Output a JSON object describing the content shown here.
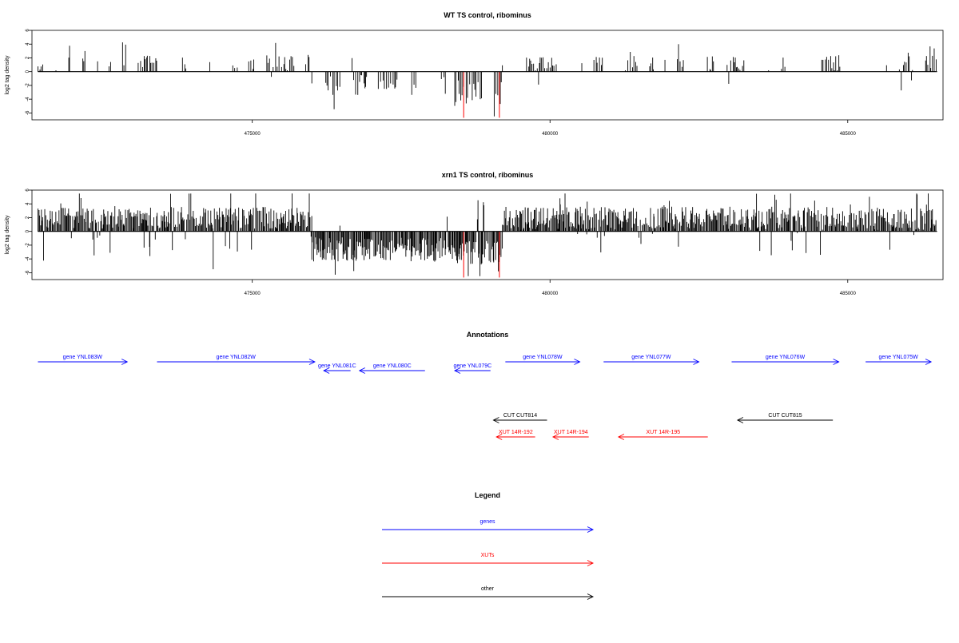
{
  "chart_data": {
    "panels": [
      {
        "type": "bar",
        "title": "WT TS control, ribominus",
        "ylabel": "log2 tag density",
        "xlim": [
          471300,
          486600
        ],
        "ylim": [
          -7,
          6
        ],
        "yticks": [
          6,
          4,
          2,
          0,
          -2,
          -4,
          -6
        ],
        "xticks": [
          475000,
          480000,
          485000
        ],
        "xtick_labels": [
          "475000",
          "480000",
          "485000"
        ],
        "seed": 11,
        "density": 0.55,
        "bar_color": "#000000",
        "highlight_color": "#ff0000",
        "regions": [
          {
            "x": [
              471400,
              476000
            ],
            "sign": 1,
            "mean": 1.3,
            "spread": 1.2
          },
          {
            "x": [
              476000,
              478400
            ],
            "sign": -1,
            "mean": 2.0,
            "spread": 1.5
          },
          {
            "x": [
              478400,
              479200
            ],
            "sign": -1,
            "mean": 3.0,
            "spread": 2.0
          },
          {
            "x": [
              479200,
              486500
            ],
            "sign": 1,
            "mean": 1.2,
            "spread": 1.2
          }
        ],
        "highlights": [
          {
            "x": 478550,
            "y": -6.7
          },
          {
            "x": 479150,
            "y": -6.7
          }
        ]
      },
      {
        "type": "bar",
        "title": "xrn1 TS control, ribominus",
        "ylabel": "log2 tag density",
        "xlim": [
          471300,
          486600
        ],
        "ylim": [
          -7,
          6
        ],
        "yticks": [
          6,
          4,
          2,
          0,
          -2,
          -4,
          -6
        ],
        "xticks": [
          475000,
          480000,
          485000
        ],
        "xtick_labels": [
          "475000",
          "480000",
          "485000"
        ],
        "seed": 29,
        "density": 1.0,
        "bar_color": "#000000",
        "highlight_color": "#ff0000",
        "regions": [
          {
            "x": [
              471400,
              476000
            ],
            "sign": 1,
            "mean": 2.0,
            "spread": 1.6
          },
          {
            "x": [
              476000,
              478400
            ],
            "sign": -1,
            "mean": 2.6,
            "spread": 1.8
          },
          {
            "x": [
              478400,
              479200
            ],
            "sign": -1,
            "mean": 3.2,
            "spread": 1.8
          },
          {
            "x": [
              479200,
              486500
            ],
            "sign": 1,
            "mean": 1.9,
            "spread": 1.7
          }
        ],
        "highlights": [
          {
            "x": 478550,
            "y": -6.7
          },
          {
            "x": 479150,
            "y": -6.7
          }
        ]
      }
    ],
    "annotations": {
      "title": "Annotations",
      "features": [
        {
          "label": "gene YNL083W",
          "start": 471400,
          "end": 472900,
          "strand": "+",
          "color": "#0000ff",
          "row": 0
        },
        {
          "label": "gene YNL082W",
          "start": 473400,
          "end": 476050,
          "strand": "+",
          "color": "#0000ff",
          "row": 0
        },
        {
          "label": "gene YNL081C",
          "start": 476200,
          "end": 476650,
          "strand": "-",
          "color": "#0000ff",
          "row": 1
        },
        {
          "label": "gene YNL080C",
          "start": 476800,
          "end": 477900,
          "strand": "-",
          "color": "#0000ff",
          "row": 1
        },
        {
          "label": "gene YNL079C",
          "start": 478400,
          "end": 479000,
          "strand": "-",
          "color": "#0000ff",
          "row": 1
        },
        {
          "label": "gene YNL078W",
          "start": 479250,
          "end": 480500,
          "strand": "+",
          "color": "#0000ff",
          "row": 0
        },
        {
          "label": "gene YNL077W",
          "start": 480900,
          "end": 482500,
          "strand": "+",
          "color": "#0000ff",
          "row": 0
        },
        {
          "label": "gene YNL076W",
          "start": 483050,
          "end": 484850,
          "strand": "+",
          "color": "#0000ff",
          "row": 0
        },
        {
          "label": "gene YNL075W",
          "start": 485300,
          "end": 486400,
          "strand": "+",
          "color": "#0000ff",
          "row": 0
        },
        {
          "label": "CUT CUT814",
          "start": 479050,
          "end": 479950,
          "strand": "-",
          "color": "#000000",
          "row": 2
        },
        {
          "label": "CUT CUT815",
          "start": 483150,
          "end": 484750,
          "strand": "-",
          "color": "#000000",
          "row": 2
        },
        {
          "label": "XUT 14R-192",
          "start": 479100,
          "end": 479750,
          "strand": "-",
          "color": "#ff0000",
          "row": 3
        },
        {
          "label": "XUT 14R-194",
          "start": 480050,
          "end": 480650,
          "strand": "-",
          "color": "#ff0000",
          "row": 3
        },
        {
          "label": "XUT 14R-195",
          "start": 481150,
          "end": 482650,
          "strand": "-",
          "color": "#ff0000",
          "row": 3
        }
      ]
    },
    "legend": {
      "title": "Legend",
      "items": [
        {
          "label": "genes",
          "color": "#0000ff"
        },
        {
          "label": "XUTs",
          "color": "#ff0000"
        },
        {
          "label": "other",
          "color": "#000000"
        }
      ]
    }
  }
}
